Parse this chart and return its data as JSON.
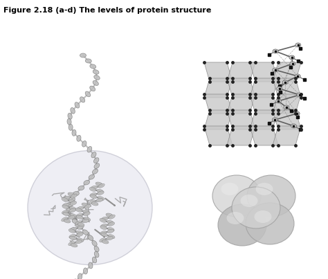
{
  "title": "Figure 2.18 (a-d) The levels of protein structure",
  "title_fontsize": 8,
  "title_fontweight": "bold",
  "bg_color": "#ffffff",
  "helix_color": "#b0b0b0",
  "helix_dark": "#808080",
  "sheet_color": "#c8c8c8",
  "node_color": "#222222",
  "tertiary_bg": "#e0e0e8",
  "quaternary_color": "#c0c0c0"
}
